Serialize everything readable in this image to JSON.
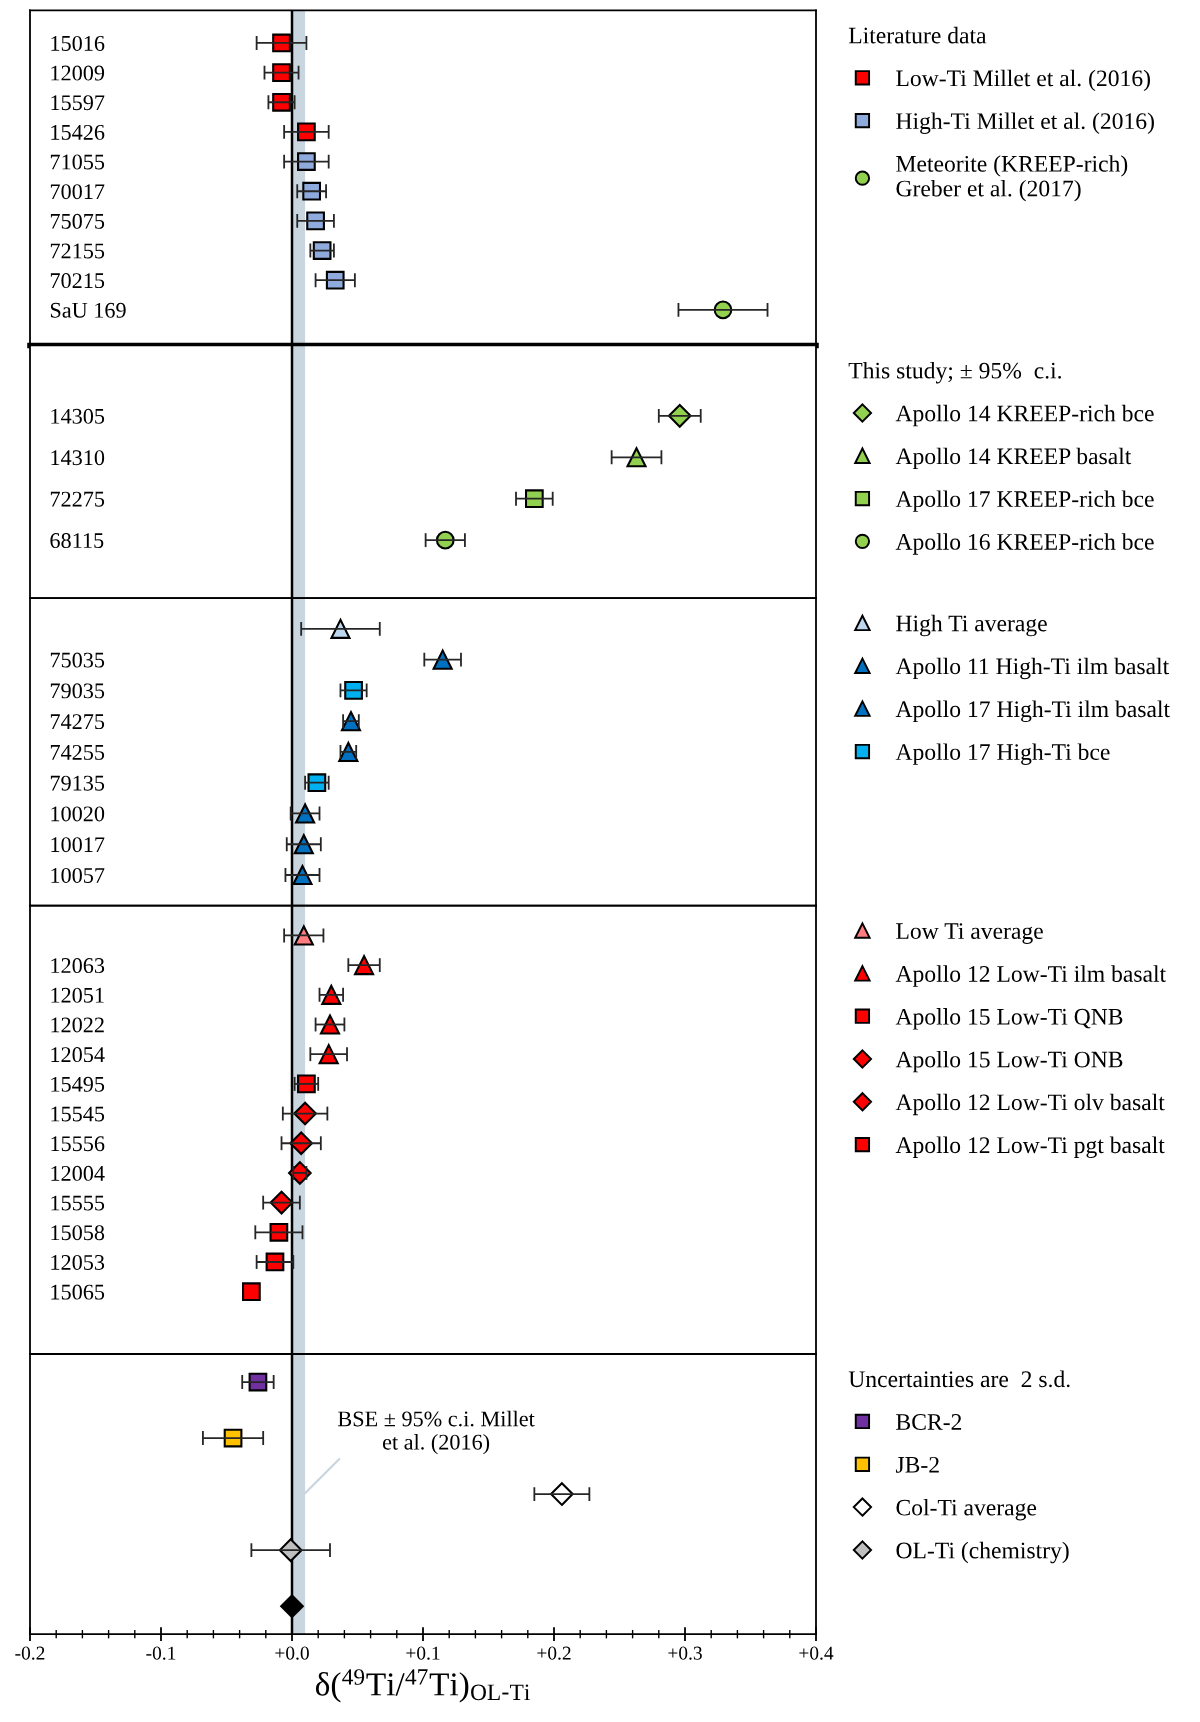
{
  "chart_data": [
    {
      "type": "scatter",
      "orientation": "horizontal",
      "categories": [
        "15016",
        "12009",
        "15597",
        "15426",
        "71055",
        "70017",
        "75075",
        "72155",
        "70215",
        "SaU 169"
      ],
      "xlim": [
        -0.2,
        0.4
      ],
      "tick_labels": "y",
      "grid": false,
      "legend": "right",
      "legend_title": "Literature data",
      "series": [
        {
          "name": "Low-Ti Millet et al. (2016)",
          "color": "#ff0000",
          "marker": "square",
          "values": [
            -0.008,
            -0.008,
            -0.008,
            0.011,
            null,
            null,
            null,
            null,
            null,
            null
          ],
          "errors": [
            0.019,
            0.013,
            0.01,
            0.017,
            null,
            null,
            null,
            null,
            null,
            null
          ]
        },
        {
          "name": "High-Ti Millet et al. (2016)",
          "color": "#8faadc",
          "marker": "square",
          "values": [
            null,
            null,
            null,
            null,
            0.011,
            0.015,
            0.018,
            0.023,
            0.033,
            null
          ],
          "errors": [
            null,
            null,
            null,
            null,
            0.017,
            0.011,
            0.014,
            0.009,
            0.015,
            null
          ]
        },
        {
          "name": "Meteorite (KREEP-rich)\nGreber et al. (2017)",
          "color": "#92d050",
          "marker": "circle",
          "values": [
            null,
            null,
            null,
            null,
            null,
            null,
            null,
            null,
            null,
            0.329
          ],
          "errors": [
            null,
            null,
            null,
            null,
            null,
            null,
            null,
            null,
            null,
            0.034
          ]
        }
      ],
      "ref_lines": [
        {
          "axis": "x",
          "value": 0,
          "color": "#000000"
        }
      ],
      "bands": [
        {
          "axis": "x",
          "from": 0,
          "to": 0.01,
          "color": "#c9d5df"
        }
      ]
    },
    {
      "type": "scatter",
      "orientation": "horizontal",
      "categories": [
        "14305",
        "14310",
        "72275",
        "68115"
      ],
      "xlim": [
        -0.2,
        0.4
      ],
      "tick_labels": "y",
      "grid": false,
      "legend": "right",
      "legend_title": "This study; ± 95%  c.i.",
      "series": [
        {
          "name": "Apollo 14 KREEP-rich bce",
          "color": "#92d050",
          "marker": "diamond",
          "values": [
            0.296,
            null,
            null,
            null
          ],
          "errors": [
            0.016,
            null,
            null,
            null
          ]
        },
        {
          "name": "Apollo 14 KREEP basalt",
          "color": "#92d050",
          "marker": "triangle",
          "values": [
            null,
            0.263,
            null,
            null
          ],
          "errors": [
            null,
            0.019,
            null,
            null
          ]
        },
        {
          "name": "Apollo 17 KREEP-rich bce",
          "color": "#92d050",
          "marker": "square",
          "values": [
            null,
            null,
            0.185,
            null
          ],
          "errors": [
            null,
            null,
            0.014,
            null
          ]
        },
        {
          "name": "Apollo 16 KREEP-rich bce",
          "color": "#92d050",
          "marker": "circle",
          "values": [
            null,
            null,
            null,
            0.117
          ],
          "errors": [
            null,
            null,
            null,
            0.015
          ]
        }
      ],
      "ref_lines": [
        {
          "axis": "x",
          "value": 0,
          "color": "#000000"
        }
      ],
      "bands": [
        {
          "axis": "x",
          "from": 0,
          "to": 0.01,
          "color": "#c9d5df"
        }
      ]
    },
    {
      "type": "scatter",
      "orientation": "horizontal",
      "categories": [
        null,
        "75035",
        "79035",
        "74275",
        "74255",
        "79135",
        "10020",
        "10017",
        "10057"
      ],
      "xlim": [
        -0.2,
        0.4
      ],
      "tick_labels": "y",
      "grid": false,
      "legend": "right",
      "series": [
        {
          "name": "High Ti average",
          "color": "#bdd7ee",
          "marker": "triangle",
          "values": [
            0.037,
            null,
            null,
            null,
            null,
            null,
            null,
            null,
            null
          ],
          "errors": [
            0.03,
            null,
            null,
            null,
            null,
            null,
            null,
            null,
            null
          ]
        },
        {
          "name": "Apollo 11 High-Ti ilm basalt",
          "color": "#0070c0",
          "marker": "triangle",
          "values": [
            null,
            null,
            null,
            null,
            null,
            null,
            0.01,
            0.009,
            0.008
          ],
          "errors": [
            null,
            null,
            null,
            null,
            null,
            null,
            0.011,
            0.013,
            0.013
          ]
        },
        {
          "name": "Apollo 17 High-Ti ilm basalt",
          "color": "#0070c0",
          "marker": "triangle",
          "values": [
            null,
            0.115,
            null,
            0.045,
            0.043,
            null,
            null,
            null,
            null
          ],
          "errors": [
            null,
            0.014,
            null,
            0.006,
            0.006,
            null,
            null,
            null,
            null
          ]
        },
        {
          "name": "Apollo 17 High-Ti bce",
          "color": "#00b0f0",
          "marker": "square",
          "values": [
            null,
            null,
            0.047,
            null,
            null,
            0.019,
            null,
            null,
            null
          ],
          "errors": [
            null,
            null,
            0.01,
            null,
            null,
            0.009,
            null,
            null,
            null
          ]
        }
      ],
      "ref_lines": [
        {
          "axis": "x",
          "value": 0,
          "color": "#000000"
        }
      ],
      "bands": [
        {
          "axis": "x",
          "from": 0,
          "to": 0.01,
          "color": "#c9d5df"
        }
      ]
    },
    {
      "type": "scatter",
      "orientation": "horizontal",
      "categories": [
        null,
        "12063",
        "12051",
        "12022",
        "12054",
        "15495",
        "15545",
        "15556",
        "12004",
        "15555",
        "15058",
        "12053",
        "15065"
      ],
      "xlim": [
        -0.2,
        0.4
      ],
      "tick_labels": "y",
      "grid": false,
      "legend": "right",
      "series": [
        {
          "name": "Low Ti average",
          "color": "#ff7c80",
          "marker": "triangle",
          "values": [
            0.009,
            null,
            null,
            null,
            null,
            null,
            null,
            null,
            null,
            null,
            null,
            null,
            null
          ],
          "errors": [
            0.015,
            null,
            null,
            null,
            null,
            null,
            null,
            null,
            null,
            null,
            null,
            null,
            null
          ]
        },
        {
          "name": "Apollo 12 Low-Ti ilm basalt",
          "color": "#ff0000",
          "marker": "triangle",
          "values": [
            null,
            0.055,
            0.03,
            0.029,
            0.028,
            null,
            null,
            null,
            null,
            null,
            null,
            null,
            null
          ],
          "errors": [
            null,
            0.012,
            0.009,
            0.011,
            0.014,
            null,
            null,
            null,
            null,
            null,
            null,
            null,
            null
          ]
        },
        {
          "name": "Apollo 15 Low-Ti QNB",
          "color": "#ff0000",
          "marker": "square",
          "values": [
            null,
            null,
            null,
            null,
            null,
            0.011,
            null,
            null,
            null,
            null,
            -0.01,
            null,
            -0.031
          ],
          "errors": [
            null,
            null,
            null,
            null,
            null,
            0.009,
            null,
            null,
            null,
            null,
            0.018,
            null,
            null
          ]
        },
        {
          "name": "Apollo 15 Low-Ti ONB",
          "color": "#ff0000",
          "marker": "diamond",
          "values": [
            null,
            null,
            null,
            null,
            null,
            null,
            0.01,
            0.007,
            null,
            -0.008,
            null,
            null,
            null
          ],
          "errors": [
            null,
            null,
            null,
            null,
            null,
            null,
            0.017,
            0.015,
            null,
            0.014,
            null,
            null,
            null
          ]
        },
        {
          "name": "Apollo 12 Low-Ti olv basalt",
          "color": "#ff0000",
          "marker": "diamond",
          "values": [
            null,
            null,
            null,
            null,
            null,
            null,
            null,
            null,
            0.006,
            null,
            null,
            null,
            null
          ],
          "errors": [
            null,
            null,
            null,
            null,
            null,
            null,
            null,
            null,
            0.005,
            null,
            null,
            null,
            null
          ]
        },
        {
          "name": "Apollo 12 Low-Ti pgt basalt",
          "color": "#ff0000",
          "marker": "square",
          "values": [
            null,
            null,
            null,
            null,
            null,
            null,
            null,
            null,
            null,
            null,
            null,
            -0.013,
            null
          ],
          "errors": [
            null,
            null,
            null,
            null,
            null,
            null,
            null,
            null,
            null,
            null,
            null,
            0.014,
            null
          ]
        }
      ],
      "ref_lines": [
        {
          "axis": "x",
          "value": 0,
          "color": "#000000"
        }
      ],
      "bands": [
        {
          "axis": "x",
          "from": 0,
          "to": 0.01,
          "color": "#c9d5df"
        }
      ]
    },
    {
      "type": "scatter",
      "orientation": "horizontal",
      "categories": [
        null,
        null,
        null,
        null,
        null
      ],
      "xlim": [
        -0.2,
        0.4
      ],
      "grid": false,
      "legend": "right",
      "legend_title": "Uncertainties are  2 s.d.",
      "xlabel": "δ($^{49}$Ti/$^{47}$Ti)$_{OL-Ti}$",
      "xticks": [
        {
          "value": -0.2,
          "label": "-0.2"
        },
        {
          "value": -0.18,
          "label": null
        },
        {
          "value": -0.16,
          "label": null
        },
        {
          "value": -0.14,
          "label": null
        },
        {
          "value": -0.12,
          "label": null
        },
        {
          "value": -0.1,
          "label": "-0.1"
        },
        {
          "value": -0.08,
          "label": null
        },
        {
          "value": -0.06,
          "label": null
        },
        {
          "value": -0.04,
          "label": null
        },
        {
          "value": -0.02,
          "label": null
        },
        {
          "value": 0,
          "label": "+0.0"
        },
        {
          "value": 0.02,
          "label": null
        },
        {
          "value": 0.04,
          "label": null
        },
        {
          "value": 0.06,
          "label": null
        },
        {
          "value": 0.08,
          "label": null
        },
        {
          "value": 0.1,
          "label": "+0.1"
        },
        {
          "value": 0.12,
          "label": null
        },
        {
          "value": 0.14,
          "label": null
        },
        {
          "value": 0.16,
          "label": null
        },
        {
          "value": 0.18,
          "label": null
        },
        {
          "value": 0.2,
          "label": "+0.2"
        },
        {
          "value": 0.22,
          "label": null
        },
        {
          "value": 0.24,
          "label": null
        },
        {
          "value": 0.26,
          "label": null
        },
        {
          "value": 0.28,
          "label": null
        },
        {
          "value": 0.3,
          "label": "+0.3"
        },
        {
          "value": 0.32,
          "label": null
        },
        {
          "value": 0.34,
          "label": null
        },
        {
          "value": 0.36,
          "label": null
        },
        {
          "value": 0.38,
          "label": null
        },
        {
          "value": 0.4,
          "label": "+0.4"
        }
      ],
      "series": [
        {
          "name": "BCR-2",
          "color": "#7030a0",
          "marker": "square",
          "values": [
            -0.026,
            null,
            null,
            null,
            null
          ],
          "errors": [
            0.012,
            null,
            null,
            null,
            null
          ]
        },
        {
          "name": "JB-2",
          "color": "#ffc000",
          "marker": "square",
          "values": [
            null,
            -0.045,
            null,
            null,
            null
          ],
          "errors": [
            null,
            0.023,
            null,
            null,
            null
          ]
        },
        {
          "name": "Col-Ti average",
          "color": "#ffffff",
          "marker": "diamond",
          "values": [
            null,
            null,
            0.206,
            null,
            null
          ],
          "errors": [
            null,
            null,
            0.021,
            null,
            null
          ]
        },
        {
          "name": "OL-Ti (chemistry)",
          "color": "#bfbfbf",
          "marker": "diamond",
          "values": [
            null,
            null,
            null,
            -0.001,
            null
          ],
          "errors": [
            null,
            null,
            null,
            0.03,
            null
          ]
        },
        {
          "color": "#000000",
          "marker": "diamond",
          "values": [
            null,
            null,
            null,
            null,
            0.0
          ]
        }
      ],
      "ref_lines": [
        {
          "axis": "x",
          "value": 0,
          "color": "#000000"
        }
      ],
      "bands": [
        {
          "axis": "x",
          "from": 0,
          "to": 0.01,
          "color": "#c9d5df",
          "label": "BSE ± 95% c.i. Millet\net al. (2016)"
        }
      ]
    }
  ]
}
